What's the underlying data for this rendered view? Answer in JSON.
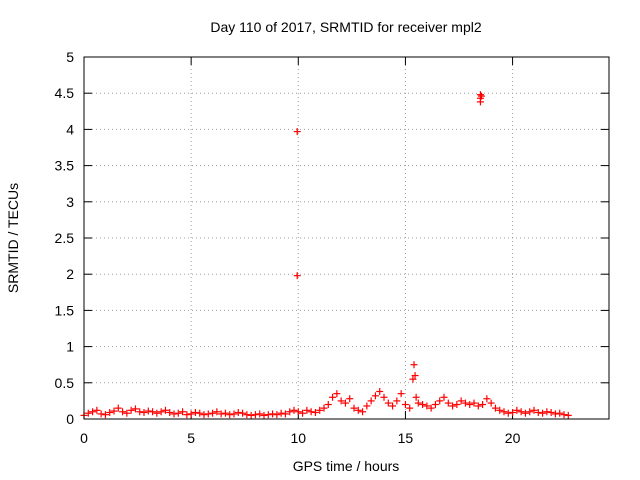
{
  "chart_data": {
    "type": "scatter",
    "title": "Day 110 of 2017, SRMTID for receiver mpl2",
    "xlabel": "GPS time / hours",
    "ylabel": "SRMTID / TECUs",
    "xlim": [
      0,
      24.5
    ],
    "ylim": [
      0,
      5
    ],
    "xticks": [
      0,
      5,
      10,
      15,
      20
    ],
    "xtick_labels": [
      "0",
      "5",
      "10",
      "15",
      "20"
    ],
    "yticks": [
      0,
      0.5,
      1,
      1.5,
      2,
      2.5,
      3,
      3.5,
      4,
      4.5,
      5
    ],
    "ytick_labels": [
      "0",
      "0.5",
      "1",
      "1.5",
      "2",
      "2.5",
      "3",
      "3.5",
      "4",
      "4.5",
      "5"
    ],
    "grid": true,
    "marker": "+",
    "color": "#ff0000",
    "series": [
      {
        "name": "SRMTID",
        "x": [
          0.0,
          0.2,
          0.4,
          0.6,
          0.8,
          1.0,
          1.2,
          1.4,
          1.6,
          1.8,
          2.0,
          2.2,
          2.4,
          2.6,
          2.8,
          3.0,
          3.2,
          3.4,
          3.6,
          3.8,
          4.0,
          4.2,
          4.4,
          4.6,
          4.8,
          5.0,
          5.2,
          5.4,
          5.6,
          5.8,
          6.0,
          6.2,
          6.4,
          6.6,
          6.8,
          7.0,
          7.2,
          7.4,
          7.6,
          7.8,
          8.0,
          8.2,
          8.4,
          8.6,
          8.8,
          9.0,
          9.2,
          9.4,
          9.6,
          9.8,
          10.0,
          10.2,
          10.4,
          10.6,
          10.8,
          11.0,
          11.2,
          11.4,
          11.6,
          11.8,
          12.0,
          12.2,
          12.4,
          12.6,
          12.8,
          13.0,
          13.2,
          13.4,
          13.6,
          13.8,
          14.0,
          14.2,
          14.4,
          14.6,
          14.8,
          15.0,
          15.2,
          15.35,
          15.4,
          15.45,
          15.5,
          15.6,
          15.8,
          16.0,
          16.2,
          16.4,
          16.6,
          16.8,
          17.0,
          17.2,
          17.4,
          17.6,
          17.8,
          18.0,
          18.2,
          18.4,
          18.6,
          18.8,
          19.0,
          19.2,
          19.4,
          19.6,
          19.8,
          20.0,
          20.2,
          20.4,
          20.6,
          20.8,
          21.0,
          21.2,
          21.4,
          21.6,
          21.8,
          22.0,
          22.2,
          22.4,
          22.6,
          9.95,
          9.95,
          18.5,
          18.5,
          18.5,
          18.55
        ],
        "y": [
          0.05,
          0.08,
          0.1,
          0.12,
          0.07,
          0.06,
          0.09,
          0.11,
          0.15,
          0.1,
          0.08,
          0.12,
          0.14,
          0.1,
          0.09,
          0.11,
          0.1,
          0.08,
          0.1,
          0.12,
          0.09,
          0.07,
          0.08,
          0.1,
          0.06,
          0.07,
          0.09,
          0.08,
          0.06,
          0.07,
          0.08,
          0.1,
          0.07,
          0.08,
          0.06,
          0.07,
          0.09,
          0.08,
          0.06,
          0.05,
          0.06,
          0.07,
          0.05,
          0.06,
          0.07,
          0.06,
          0.08,
          0.07,
          0.1,
          0.12,
          0.1,
          0.08,
          0.12,
          0.1,
          0.09,
          0.12,
          0.15,
          0.2,
          0.3,
          0.35,
          0.25,
          0.22,
          0.28,
          0.15,
          0.12,
          0.1,
          0.18,
          0.25,
          0.32,
          0.38,
          0.3,
          0.22,
          0.18,
          0.25,
          0.35,
          0.2,
          0.15,
          0.55,
          0.75,
          0.6,
          0.3,
          0.22,
          0.2,
          0.18,
          0.15,
          0.2,
          0.25,
          0.3,
          0.22,
          0.18,
          0.2,
          0.25,
          0.22,
          0.2,
          0.22,
          0.18,
          0.2,
          0.28,
          0.22,
          0.15,
          0.12,
          0.1,
          0.08,
          0.09,
          0.12,
          0.1,
          0.08,
          0.1,
          0.12,
          0.09,
          0.08,
          0.1,
          0.09,
          0.07,
          0.08,
          0.06,
          0.05,
          3.97,
          1.98,
          4.48,
          4.43,
          4.38,
          4.46
        ]
      }
    ]
  }
}
